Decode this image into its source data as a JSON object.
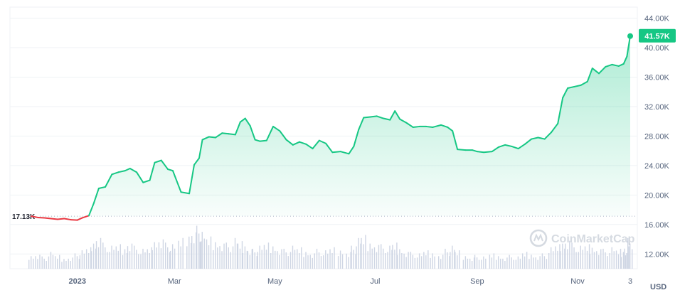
{
  "currency_unit": "USD",
  "watermark": "CoinMarketCap",
  "chart_data": {
    "type": "area",
    "title": "",
    "xlabel": "",
    "ylabel": "",
    "ylim": [
      10000,
      45500
    ],
    "y_ticks": [
      {
        "value": 44000,
        "label": "44.00K"
      },
      {
        "value": 40000,
        "label": "40.00K"
      },
      {
        "value": 36000,
        "label": "36.00K"
      },
      {
        "value": 32000,
        "label": "32.00K"
      },
      {
        "value": 28000,
        "label": "28.00K"
      },
      {
        "value": 24000,
        "label": "24.00K"
      },
      {
        "value": 20000,
        "label": "20.00K"
      },
      {
        "value": 16000,
        "label": "16.00K"
      },
      {
        "value": 12000,
        "label": "12.00K"
      }
    ],
    "x_ticks": [
      {
        "value": "2023-01-01",
        "label": "2023",
        "bold": true
      },
      {
        "value": "2023-03-01",
        "label": "Mar"
      },
      {
        "value": "2023-05-01",
        "label": "May"
      },
      {
        "value": "2023-07-01",
        "label": "Jul"
      },
      {
        "value": "2023-09-01",
        "label": "Sep"
      },
      {
        "value": "2023-11-01",
        "label": "Nov"
      },
      {
        "value": "2023-12-03",
        "label": "3"
      }
    ],
    "x_range": [
      "2022-12-04",
      "2023-12-03"
    ],
    "grid": true,
    "baseline": {
      "value": 17130,
      "label": "17.13K"
    },
    "current": {
      "value": 41570,
      "label": "41.57K"
    },
    "colors": {
      "up": "#16c784",
      "down": "#ea3943",
      "volume": "#cfd6e4"
    },
    "series": [
      {
        "x": [
          "2022-12-04",
          "2022-12-08",
          "2022-12-12",
          "2022-12-16",
          "2022-12-20",
          "2022-12-24",
          "2022-12-28",
          "2023-01-01",
          "2023-01-04",
          "2023-01-08",
          "2023-01-11",
          "2023-01-14",
          "2023-01-18",
          "2023-01-22",
          "2023-01-26",
          "2023-01-30",
          "2023-02-02",
          "2023-02-06",
          "2023-02-10",
          "2023-02-14",
          "2023-02-17",
          "2023-02-21",
          "2023-02-25",
          "2023-02-28",
          "2023-03-05",
          "2023-03-10",
          "2023-03-13",
          "2023-03-16",
          "2023-03-18",
          "2023-03-22",
          "2023-03-26",
          "2023-03-30",
          "2023-04-03",
          "2023-04-07",
          "2023-04-10",
          "2023-04-13",
          "2023-04-16",
          "2023-04-19",
          "2023-04-22",
          "2023-04-26",
          "2023-04-30",
          "2023-05-04",
          "2023-05-08",
          "2023-05-12",
          "2023-05-16",
          "2023-05-20",
          "2023-05-24",
          "2023-05-28",
          "2023-06-01",
          "2023-06-05",
          "2023-06-10",
          "2023-06-15",
          "2023-06-18",
          "2023-06-21",
          "2023-06-24",
          "2023-06-28",
          "2023-07-02",
          "2023-07-06",
          "2023-07-10",
          "2023-07-13",
          "2023-07-16",
          "2023-07-20",
          "2023-07-24",
          "2023-07-28",
          "2023-08-01",
          "2023-08-05",
          "2023-08-10",
          "2023-08-14",
          "2023-08-17",
          "2023-08-20",
          "2023-08-25",
          "2023-08-29",
          "2023-09-01",
          "2023-09-05",
          "2023-09-10",
          "2023-09-14",
          "2023-09-18",
          "2023-09-22",
          "2023-09-26",
          "2023-09-30",
          "2023-10-04",
          "2023-10-08",
          "2023-10-12",
          "2023-10-16",
          "2023-10-20",
          "2023-10-23",
          "2023-10-26",
          "2023-10-30",
          "2023-11-03",
          "2023-11-07",
          "2023-11-10",
          "2023-11-14",
          "2023-11-18",
          "2023-11-22",
          "2023-11-26",
          "2023-11-29",
          "2023-12-01",
          "2023-12-03"
        ],
        "y": [
          17130,
          16950,
          16900,
          16800,
          16700,
          16800,
          16650,
          16600,
          16900,
          17200,
          18900,
          20900,
          21100,
          22800,
          23100,
          23300,
          23600,
          23100,
          21700,
          22000,
          24400,
          24700,
          23500,
          23300,
          20400,
          20200,
          24100,
          25000,
          27500,
          27900,
          27800,
          28400,
          28300,
          28200,
          29900,
          30400,
          29400,
          27500,
          27300,
          27400,
          29300,
          28700,
          27500,
          26800,
          27200,
          26900,
          26300,
          27400,
          27000,
          25800,
          25900,
          25600,
          26600,
          28900,
          30500,
          30600,
          30700,
          30400,
          30200,
          31400,
          30300,
          29800,
          29200,
          29300,
          29300,
          29200,
          29500,
          29200,
          28700,
          26200,
          26100,
          26100,
          25900,
          25800,
          25900,
          26500,
          26800,
          26600,
          26300,
          26900,
          27600,
          27800,
          27600,
          28500,
          29700,
          33200,
          34500,
          34700,
          34900,
          35400,
          37200,
          36500,
          37400,
          37700,
          37500,
          37800,
          38800,
          41570
        ]
      }
    ],
    "volume": [
      9,
      10,
      8,
      11,
      9,
      7,
      8,
      10,
      12,
      14,
      18,
      22,
      17,
      15,
      16,
      14,
      18,
      15,
      13,
      14,
      19,
      21,
      17,
      16,
      20,
      23,
      26,
      28,
      24,
      21,
      19,
      18,
      17,
      20,
      18,
      16,
      14,
      13,
      15,
      17,
      16,
      14,
      13,
      15,
      14,
      12,
      11,
      13,
      12,
      14,
      13,
      12,
      15,
      20,
      22,
      18,
      17,
      16,
      15,
      17,
      14,
      12,
      11,
      10,
      12,
      11,
      10,
      13,
      15,
      12,
      9,
      8,
      9,
      8,
      10,
      9,
      8,
      9,
      8,
      11,
      10,
      9,
      10,
      14,
      16,
      18,
      20,
      17,
      15,
      16,
      15,
      14,
      13,
      14,
      13,
      12,
      16,
      20
    ]
  }
}
